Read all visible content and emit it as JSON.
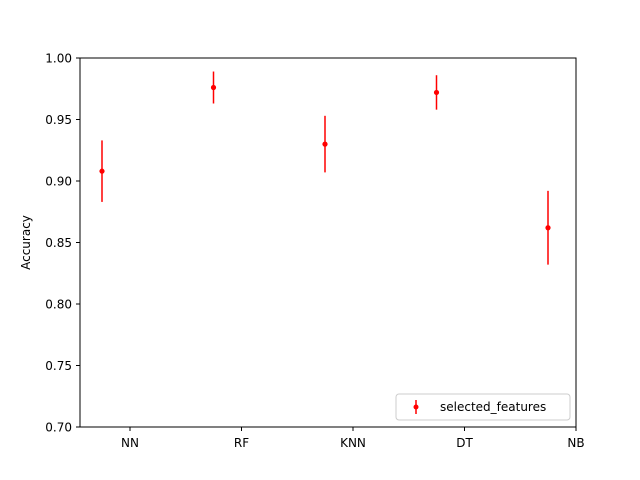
{
  "chart_data": {
    "type": "scatter",
    "title": "",
    "xlabel": "",
    "ylabel": "Accuracy",
    "ylim": [
      0.7,
      1.0
    ],
    "yticks": [
      "0.70",
      "0.75",
      "0.80",
      "0.85",
      "0.90",
      "0.95",
      "1.00"
    ],
    "xticks": [
      "NN",
      "RF",
      "KNN",
      "DT",
      "NB"
    ],
    "grid": false,
    "legend_position": "lower-right",
    "series": [
      {
        "name": "selected_features",
        "color": "#ff0000",
        "marker": "point-with-error-bar",
        "points": [
          {
            "y": 0.908,
            "err_low": 0.883,
            "err_high": 0.933
          },
          {
            "y": 0.976,
            "err_low": 0.963,
            "err_high": 0.989
          },
          {
            "y": 0.93,
            "err_low": 0.907,
            "err_high": 0.953
          },
          {
            "y": 0.972,
            "err_low": 0.958,
            "err_high": 0.986
          },
          {
            "y": 0.862,
            "err_low": 0.832,
            "err_high": 0.892
          }
        ]
      }
    ]
  }
}
